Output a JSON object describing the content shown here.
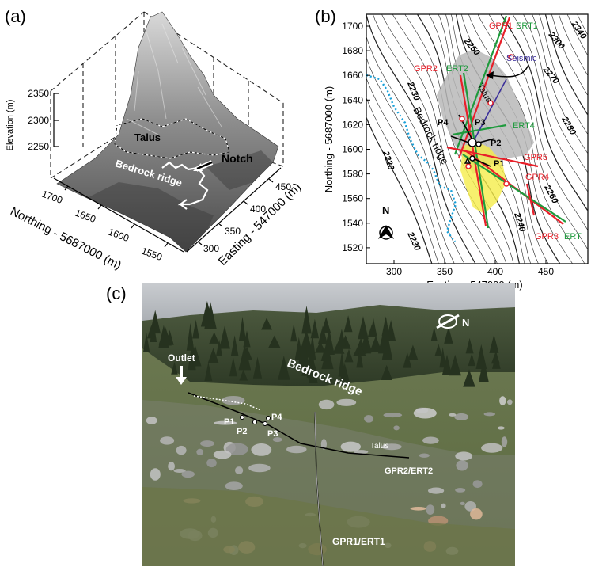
{
  "panel_a": {
    "letter": "(a)",
    "z_axis_label": "Elevation (m)",
    "z_ticks": [
      "2350",
      "2300",
      "2250"
    ],
    "north_ticks": [
      "1700",
      "1650",
      "1600",
      "1550"
    ],
    "north_axis_label": "Northing - 5687000 (m)",
    "east_ticks": [
      "450",
      "400",
      "350",
      "300"
    ],
    "east_axis_label": "Easting - 547000 (m)",
    "labels": {
      "talus": "Talus",
      "notch": "Notch",
      "bedrock_ridge": "Bedrock ridge"
    }
  },
  "panel_b": {
    "letter": "(b)",
    "y_axis_label": "Northing - 5687000 (m)",
    "y_ticks": [
      "1700",
      "1680",
      "1660",
      "1640",
      "1620",
      "1600",
      "1580",
      "1560",
      "1540",
      "1520"
    ],
    "x_axis_label": "Easting - 547000 (m)",
    "x_ticks": [
      "300",
      "350",
      "400",
      "450"
    ],
    "contour_labels": [
      "2250",
      "2300",
      "2340",
      "2270",
      "2230",
      "2280",
      "2220",
      "2260",
      "2240",
      "2230"
    ],
    "lines": {
      "gpr1": "GPR1",
      "ert1": "ERT1",
      "gpr2": "GPR2",
      "ert2": "ERT2",
      "seismic": "Seismic",
      "ert4": "ERT4",
      "gpr5": "GPR5",
      "gpr4": "GPR4",
      "gpr3": "GPR3",
      "ert3": "ERT"
    },
    "points": {
      "p1": "P1",
      "p2": "P2",
      "p3": "P3",
      "p4": "P4"
    },
    "area_labels": {
      "talus": "Talus",
      "bedrock_ridge": "Bedrock ridge"
    },
    "north": "N",
    "colors": {
      "gpr": "#e8202a",
      "ert": "#1e9a3c",
      "seismic": "#3b2f9a",
      "stream": "#1aa0d8",
      "talus": "#b9b9b9",
      "wet": "#f5ec4a"
    }
  },
  "panel_c": {
    "letter": "(c)",
    "labels": {
      "outlet": "Outlet",
      "bedrock_ridge": "Bedrock ridge",
      "talus": "Talus",
      "gpr2_ert2": "GPR2/ERT2",
      "gpr1_ert1": "GPR1/ERT1",
      "p1": "P1",
      "p2": "P2",
      "p3": "P3",
      "p4": "P4",
      "north": "N"
    }
  }
}
